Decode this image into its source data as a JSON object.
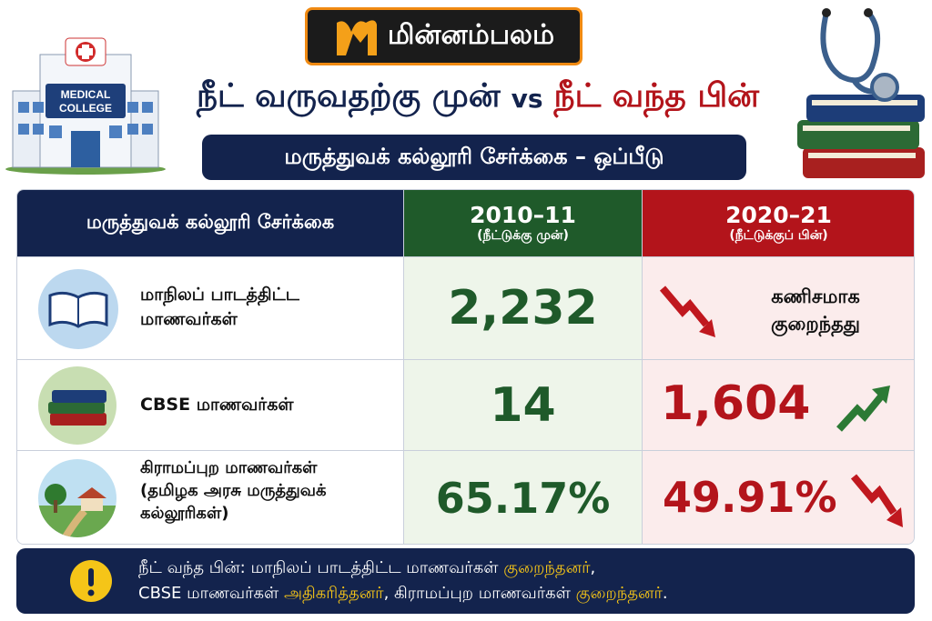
{
  "logo": "மின்னம்பலம்",
  "title": {
    "before": "நீட் வருவதற்கு முன்",
    "vs": "vs",
    "after": "நீட் வந்த பின்"
  },
  "subtitle": "மருத்துவக் கல்லூரி சேர்க்கை – ஒப்பீடு",
  "hospital_sign": [
    "MEDICAL",
    "COLLEGE"
  ],
  "table": {
    "header": {
      "label": "மருத்துவக் கல்லூரி சேர்க்கை",
      "col1": {
        "year": "2010–11",
        "note": "(நீட்டுக்கு முன்)"
      },
      "col2": {
        "year": "2020–21",
        "note": "(நீட்டுக்குப் பின்)"
      }
    },
    "rows": [
      {
        "label": [
          "மாநிலப் பாடத்திட்ட",
          "மாணவர்கள்"
        ],
        "before": "2,232",
        "after": [
          "கணிசமாக",
          "குறைந்தது"
        ]
      },
      {
        "label": [
          "CBSE மாணவர்கள்"
        ],
        "before": "14",
        "after": [
          "1,604"
        ]
      },
      {
        "label": [
          "கிராமப்புற மாணவர்கள்",
          "(தமிழக அரசு மருத்துவக்",
          "கல்லூரிகள்)"
        ],
        "before": "65.17%",
        "after": [
          "49.91%"
        ]
      }
    ]
  },
  "footer": [
    "நீட் வந்த பின்: மாநிலப் பாடத்திட்ட மாணவர்கள் ",
    "குறைந்தனர்",
    ",",
    "CBSE மாணவர்கள் ",
    "அதிகரித்தனர்",
    ", கிராமப்புற மாணவர்கள் ",
    "குறைந்தனர்",
    "."
  ]
}
